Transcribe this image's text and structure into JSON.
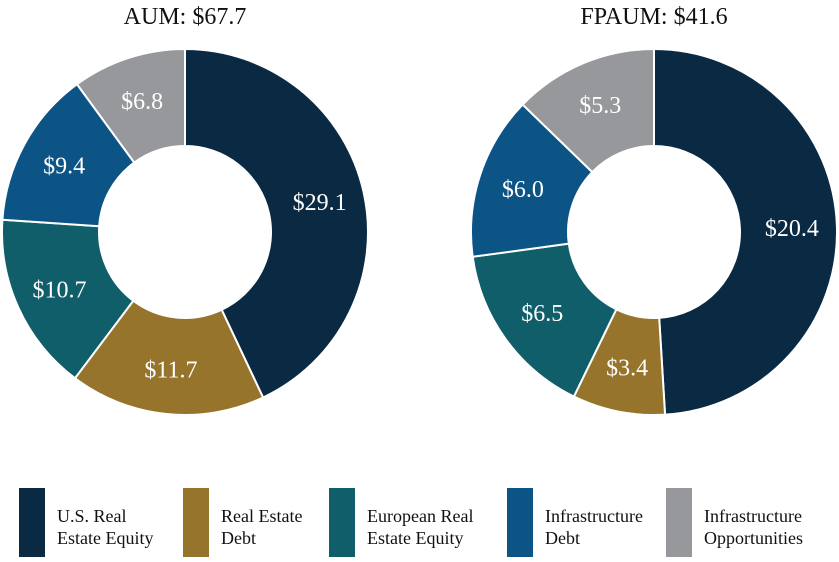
{
  "chart_data": [
    {
      "type": "pie",
      "variant": "donut",
      "title": "AUM: $67.7",
      "categories": [
        "U.S. Real Estate Equity",
        "Real Estate Debt",
        "European Real Estate Equity",
        "Infrastructure Debt",
        "Infrastructure Opportunities"
      ],
      "values": [
        29.1,
        11.7,
        10.7,
        9.4,
        6.8
      ],
      "labels": [
        "$29.1",
        "$11.7",
        "$10.7",
        "$9.4",
        "$6.8"
      ]
    },
    {
      "type": "pie",
      "variant": "donut",
      "title": "FPAUM: $41.6",
      "categories": [
        "U.S. Real Estate Equity",
        "Real Estate Debt",
        "European Real Estate Equity",
        "Infrastructure Debt",
        "Infrastructure Opportunities"
      ],
      "values": [
        20.4,
        3.4,
        6.5,
        6.0,
        5.3
      ],
      "labels": [
        "$20.4",
        "$3.4",
        "$6.5",
        "$6.0",
        "$5.3"
      ]
    }
  ],
  "colors": [
    "#0a2942",
    "#97742b",
    "#0f5e6a",
    "#0c5486",
    "#96989b"
  ],
  "legend": [
    {
      "line1": "U.S. Real",
      "line2": "Estate Equity"
    },
    {
      "line1": "Real Estate",
      "line2": "Debt"
    },
    {
      "line1": "European Real",
      "line2": "Estate Equity"
    },
    {
      "line1": "Infrastructure",
      "line2": "Debt"
    },
    {
      "line1": "Infrastructure",
      "line2": "Opportunities"
    }
  ]
}
